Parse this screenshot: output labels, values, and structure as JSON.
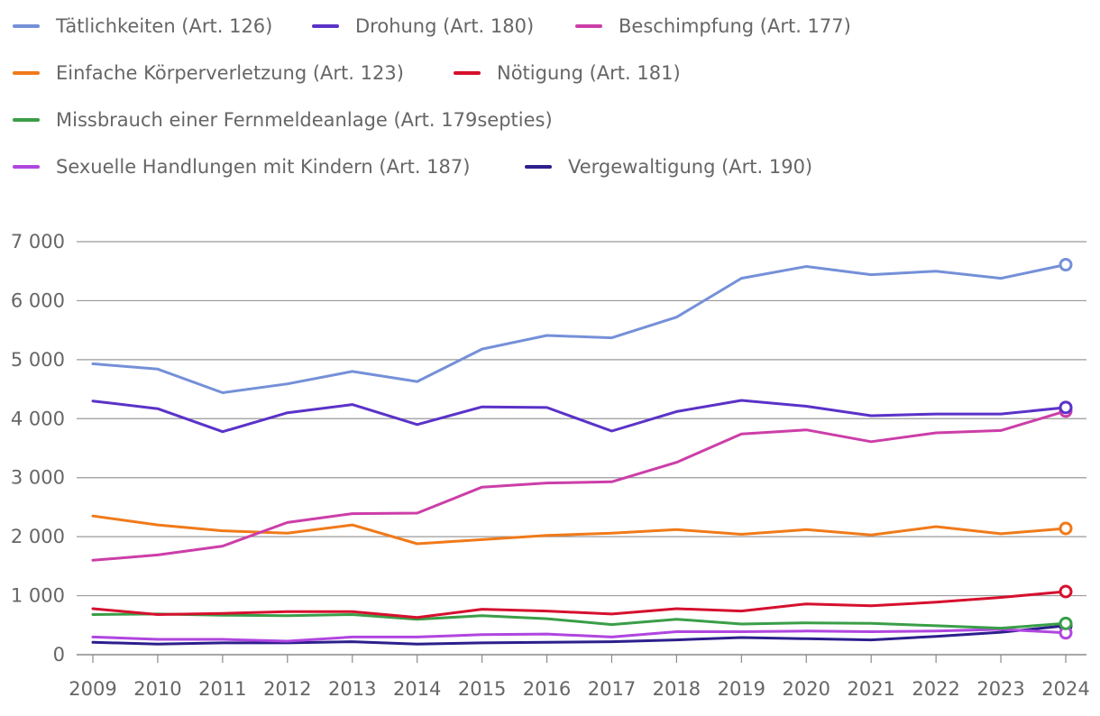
{
  "chart_data": {
    "type": "line",
    "title": "",
    "xlabel": "",
    "ylabel": "",
    "x": [
      2009,
      2010,
      2011,
      2012,
      2013,
      2014,
      2015,
      2016,
      2017,
      2018,
      2019,
      2020,
      2021,
      2022,
      2023,
      2024
    ],
    "x_tick_labels": [
      "2009",
      "2010",
      "2011",
      "2012",
      "2013",
      "2014",
      "2015",
      "2016",
      "2017",
      "2018",
      "2019",
      "2020",
      "2021",
      "2022",
      "2023",
      "2024"
    ],
    "ylim": [
      0,
      7000
    ],
    "y_ticks": [
      0,
      1000,
      2000,
      3000,
      4000,
      5000,
      6000,
      7000
    ],
    "y_tick_labels": [
      "0",
      "1 000",
      "2 000",
      "3 000",
      "4 000",
      "5 000",
      "6 000",
      "7 000"
    ],
    "grid": true,
    "legend_position": "top",
    "series": [
      {
        "name": "Tätlichkeiten (Art. 126)",
        "color": "#7590d8",
        "values": [
          4930,
          4840,
          4440,
          4590,
          4800,
          4630,
          5180,
          5410,
          5370,
          5720,
          6380,
          6580,
          6440,
          6500,
          6380,
          6610
        ]
      },
      {
        "name": "Drohung (Art. 180)",
        "color": "#5a32c8",
        "values": [
          4300,
          4170,
          3780,
          4100,
          4240,
          3900,
          4200,
          4190,
          3790,
          4120,
          4310,
          4210,
          4050,
          4080,
          4080,
          4190
        ]
      },
      {
        "name": "Beschimpfung (Art. 177)",
        "color": "#cc3ea8",
        "values": [
          1600,
          1690,
          1840,
          2240,
          2390,
          2400,
          2840,
          2910,
          2930,
          3260,
          3740,
          3810,
          3610,
          3760,
          3800,
          4130
        ]
      },
      {
        "name": "Einfache Körperverletzung (Art. 123)",
        "color": "#f07a1a",
        "values": [
          2350,
          2200,
          2100,
          2060,
          2200,
          1880,
          1950,
          2020,
          2060,
          2120,
          2040,
          2120,
          2030,
          2170,
          2050,
          2140
        ]
      },
      {
        "name": "Nötigung (Art. 181)",
        "color": "#d6102e",
        "values": [
          780,
          680,
          700,
          730,
          730,
          630,
          770,
          740,
          690,
          780,
          740,
          860,
          830,
          890,
          970,
          1070
        ]
      },
      {
        "name": "Missbrauch einer Fernmeldeanlage (Art. 179septies)",
        "color": "#3a9e48",
        "values": [
          680,
          690,
          670,
          660,
          680,
          600,
          660,
          610,
          510,
          600,
          520,
          540,
          530,
          490,
          450,
          530
        ]
      },
      {
        "name": "Sexuelle Handlungen mit Kindern (Art. 187)",
        "color": "#b046e0",
        "values": [
          300,
          260,
          260,
          230,
          300,
          300,
          340,
          350,
          300,
          390,
          390,
          400,
          390,
          400,
          430,
          370
        ]
      },
      {
        "name": "Vergewaltigung (Art. 190)",
        "color": "#2c1f8c",
        "values": [
          210,
          180,
          200,
          200,
          220,
          180,
          200,
          210,
          220,
          250,
          290,
          270,
          250,
          310,
          380,
          490
        ]
      }
    ]
  }
}
